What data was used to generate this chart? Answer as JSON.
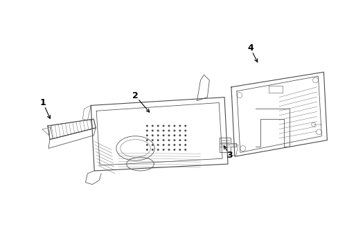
{
  "background_color": "#ffffff",
  "line_color": "#4a4a4a",
  "label_color": "#000000",
  "labels": [
    "1",
    "2",
    "3",
    "4"
  ],
  "figsize": [
    4.89,
    3.6
  ],
  "dpi": 100
}
